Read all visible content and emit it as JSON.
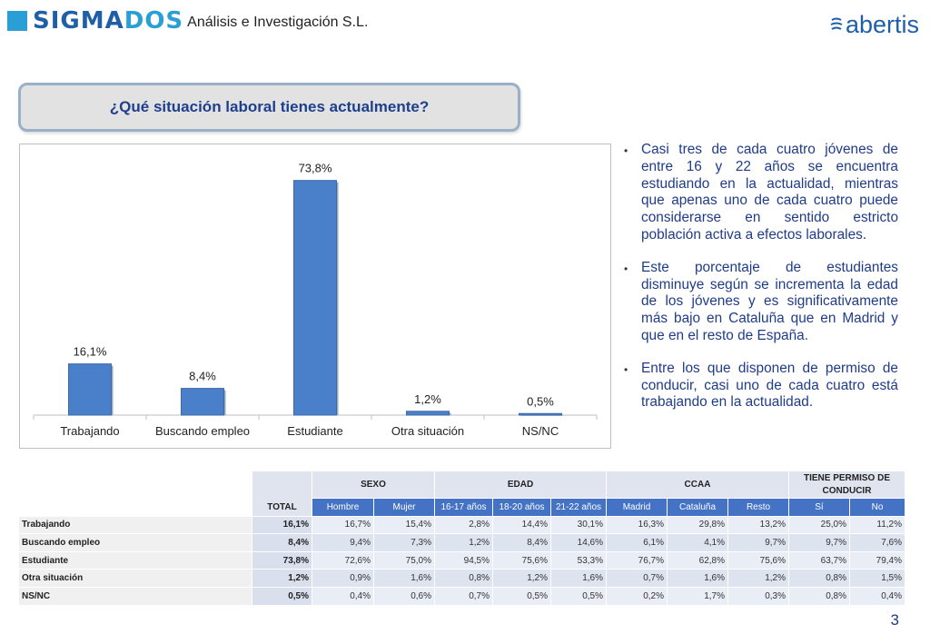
{
  "header": {
    "brand_name_a": "SIGMA",
    "brand_name_b": "DOS",
    "brand_subtitle": "Análisis e Investigación S.L.",
    "partner_name": "abertis"
  },
  "question": "¿Qué situación laboral tienes actualmente?",
  "chart_data": {
    "type": "bar",
    "categories": [
      "Trabajando",
      "Buscando empleo",
      "Estudiante",
      "Otra situación",
      "NS/NC"
    ],
    "values": [
      16.1,
      8.4,
      73.8,
      1.2,
      0.5
    ],
    "value_labels": [
      "16,1%",
      "8,4%",
      "73,8%",
      "1,2%",
      "0,5%"
    ],
    "ylim": [
      0,
      80
    ],
    "grid": false,
    "bar_color": "#4a7fc9"
  },
  "bullets": [
    "Casi tres de cada cuatro jóvenes de entre 16 y 22 años se encuentra estudiando en la actualidad, mientras que apenas uno de cada cuatro puede considerarse en sentido estricto población activa a efectos laborales.",
    "Este porcentaje de estudiantes disminuye según se incrementa la edad de los jóvenes y es significativamente más bajo en Cataluña que en Madrid y que en el resto de España.",
    "Entre los que disponen de permiso de conducir, casi uno de cada cuatro está trabajando en la actualidad."
  ],
  "table": {
    "total_header": "TOTAL",
    "groups": [
      "SEXO",
      "EDAD",
      "CCAA",
      "TIENE PERMISO DE CONDUCIR"
    ],
    "subheaders": [
      "Hombre",
      "Mujer",
      "16-17 años",
      "18-20 años",
      "21-22 años",
      "Madrid",
      "Cataluña",
      "Resto",
      "Sí",
      "No"
    ],
    "rows": [
      {
        "label": "Trabajando",
        "total": "16,1%",
        "values": [
          "16,7%",
          "15,4%",
          "2,8%",
          "14,4%",
          "30,1%",
          "16,3%",
          "29,8%",
          "13,2%",
          "25,0%",
          "11,2%"
        ]
      },
      {
        "label": "Buscando empleo",
        "total": "8,4%",
        "values": [
          "9,4%",
          "7,3%",
          "1,2%",
          "8,4%",
          "14,6%",
          "6,1%",
          "4,1%",
          "9,7%",
          "9,7%",
          "7,6%"
        ]
      },
      {
        "label": "Estudiante",
        "total": "73,8%",
        "values": [
          "72,6%",
          "75,0%",
          "94,5%",
          "75,6%",
          "53,3%",
          "76,7%",
          "62,8%",
          "75,6%",
          "63,7%",
          "79,4%"
        ]
      },
      {
        "label": "Otra situación",
        "total": "1,2%",
        "values": [
          "0,9%",
          "1,6%",
          "0,8%",
          "1,2%",
          "1,6%",
          "0,7%",
          "1,6%",
          "1,2%",
          "0,8%",
          "1,5%"
        ]
      },
      {
        "label": "NS/NC",
        "total": "0,5%",
        "values": [
          "0,4%",
          "0,6%",
          "0,7%",
          "0,5%",
          "0,5%",
          "0,2%",
          "1,7%",
          "0,3%",
          "0,8%",
          "0,4%"
        ]
      }
    ]
  },
  "page_number": "3"
}
